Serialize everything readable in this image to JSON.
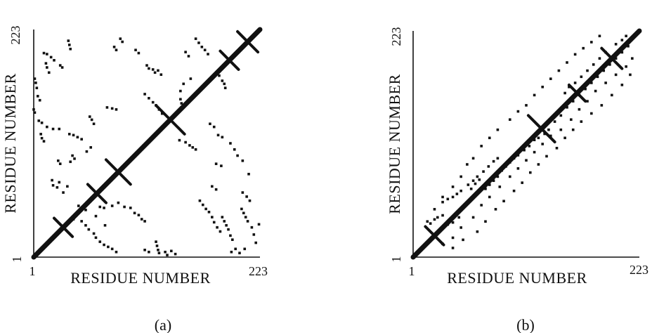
{
  "chart_data": [
    {
      "type": "scatter",
      "panel_label": "(a)",
      "xlabel": "RESIDUE NUMBER",
      "ylabel": "RESIDUE NUMBER",
      "x_ticks": [
        "1",
        "223"
      ],
      "y_ticks": [
        "1",
        "223"
      ],
      "xlim": [
        1,
        223
      ],
      "ylim": [
        1,
        223
      ],
      "grid": false,
      "diagonal": true,
      "crosses": [
        {
          "x": 30,
          "y": 30,
          "halfwidth": 9
        },
        {
          "x": 63,
          "y": 63,
          "halfwidth": 9
        },
        {
          "x": 84,
          "y": 84,
          "halfwidth": 12
        },
        {
          "x": 135,
          "y": 135,
          "halfwidth": 14
        },
        {
          "x": 193,
          "y": 193,
          "halfwidth": 9
        },
        {
          "x": 211,
          "y": 211,
          "halfwidth": 10
        }
      ],
      "points": [
        [
          35,
          212
        ],
        [
          36,
          208
        ],
        [
          37,
          204
        ],
        [
          80,
          206
        ],
        [
          82,
          203
        ],
        [
          86,
          214
        ],
        [
          88,
          211
        ],
        [
          101,
          203
        ],
        [
          104,
          200
        ],
        [
          112,
          188
        ],
        [
          114,
          185
        ],
        [
          118,
          184
        ],
        [
          120,
          181
        ],
        [
          123,
          183
        ],
        [
          126,
          179
        ],
        [
          150,
          201
        ],
        [
          153,
          197
        ],
        [
          160,
          214
        ],
        [
          163,
          210
        ],
        [
          166,
          206
        ],
        [
          169,
          203
        ],
        [
          172,
          199
        ],
        [
          183,
          178
        ],
        [
          186,
          173
        ],
        [
          188,
          170
        ],
        [
          189,
          166
        ],
        [
          155,
          175
        ],
        [
          148,
          170
        ],
        [
          145,
          163
        ],
        [
          145,
          155
        ],
        [
          146,
          151
        ],
        [
          11,
          200
        ],
        [
          14,
          199
        ],
        [
          18,
          196
        ],
        [
          21,
          193
        ],
        [
          27,
          188
        ],
        [
          29,
          186
        ],
        [
          13,
          190
        ],
        [
          14,
          186
        ],
        [
          16,
          181
        ],
        [
          2,
          175
        ],
        [
          3,
          171
        ],
        [
          4,
          166
        ],
        [
          5,
          158
        ],
        [
          7,
          154
        ],
        [
          1,
          145
        ],
        [
          2,
          142
        ],
        [
          6,
          134
        ],
        [
          9,
          132
        ],
        [
          14,
          128
        ],
        [
          20,
          126
        ],
        [
          26,
          126
        ],
        [
          8,
          121
        ],
        [
          9,
          117
        ],
        [
          11,
          114
        ],
        [
          36,
          121
        ],
        [
          40,
          120
        ],
        [
          44,
          118
        ],
        [
          48,
          116
        ],
        [
          53,
          104
        ],
        [
          57,
          108
        ],
        [
          39,
          100
        ],
        [
          41,
          97
        ],
        [
          37,
          94
        ],
        [
          25,
          95
        ],
        [
          27,
          92
        ],
        [
          19,
          76
        ],
        [
          20,
          71
        ],
        [
          26,
          74
        ],
        [
          24,
          69
        ],
        [
          30,
          64
        ],
        [
          34,
          70
        ],
        [
          66,
          50
        ],
        [
          70,
          49
        ],
        [
          78,
          51
        ],
        [
          84,
          54
        ],
        [
          90,
          50
        ],
        [
          96,
          49
        ],
        [
          100,
          44
        ],
        [
          104,
          42
        ],
        [
          107,
          38
        ],
        [
          110,
          36
        ],
        [
          45,
          51
        ],
        [
          52,
          47
        ],
        [
          62,
          41
        ],
        [
          71,
          32
        ],
        [
          40,
          38
        ],
        [
          48,
          36
        ],
        [
          52,
          32
        ],
        [
          55,
          28
        ],
        [
          60,
          24
        ],
        [
          62,
          20
        ],
        [
          66,
          16
        ],
        [
          70,
          13
        ],
        [
          74,
          11
        ],
        [
          78,
          9
        ],
        [
          82,
          6
        ],
        [
          56,
          138
        ],
        [
          58,
          135
        ],
        [
          60,
          131
        ],
        [
          73,
          147
        ],
        [
          78,
          146
        ],
        [
          82,
          145
        ],
        [
          110,
          160
        ],
        [
          114,
          156
        ],
        [
          118,
          152
        ],
        [
          121,
          149
        ],
        [
          124,
          145
        ],
        [
          127,
          141
        ],
        [
          144,
          115
        ],
        [
          150,
          113
        ],
        [
          154,
          110
        ],
        [
          157,
          108
        ],
        [
          160,
          106
        ],
        [
          174,
          131
        ],
        [
          178,
          128
        ],
        [
          182,
          120
        ],
        [
          186,
          118
        ],
        [
          194,
          112
        ],
        [
          198,
          106
        ],
        [
          201,
          100
        ],
        [
          206,
          95
        ],
        [
          212,
          82
        ],
        [
          180,
          92
        ],
        [
          185,
          90
        ],
        [
          176,
          70
        ],
        [
          180,
          67
        ],
        [
          206,
          64
        ],
        [
          210,
          60
        ],
        [
          213,
          56
        ],
        [
          186,
          40
        ],
        [
          188,
          36
        ],
        [
          190,
          32
        ],
        [
          192,
          28
        ],
        [
          194,
          22
        ],
        [
          196,
          18
        ],
        [
          164,
          56
        ],
        [
          167,
          52
        ],
        [
          170,
          48
        ],
        [
          173,
          45
        ],
        [
          176,
          40
        ],
        [
          178,
          35
        ],
        [
          181,
          30
        ],
        [
          184,
          26
        ],
        [
          121,
          16
        ],
        [
          122,
          12
        ],
        [
          123,
          8
        ],
        [
          124,
          5
        ],
        [
          130,
          6
        ],
        [
          132,
          3
        ],
        [
          136,
          7
        ],
        [
          140,
          4
        ],
        [
          110,
          8
        ],
        [
          114,
          6
        ],
        [
          195,
          6
        ],
        [
          199,
          9
        ],
        [
          203,
          5
        ],
        [
          208,
          9
        ],
        [
          222,
          33
        ],
        [
          215,
          30
        ],
        [
          217,
          23
        ],
        [
          219,
          15
        ],
        [
          205,
          48
        ],
        [
          207,
          44
        ],
        [
          209,
          40
        ],
        [
          211,
          36
        ]
      ]
    },
    {
      "type": "scatter",
      "panel_label": "(b)",
      "xlabel": "RESIDUE NUMBER",
      "ylabel": "RESIDUE NUMBER",
      "x_ticks": [
        "1",
        "223"
      ],
      "y_ticks": [
        "1",
        "223"
      ],
      "xlim": [
        1,
        223
      ],
      "ylim": [
        1,
        223
      ],
      "grid": false,
      "diagonal": true,
      "crosses": [
        {
          "x": 22,
          "y": 22,
          "halfwidth": 9
        },
        {
          "x": 127,
          "y": 127,
          "halfwidth": 13
        },
        {
          "x": 162,
          "y": 162,
          "halfwidth": 8
        },
        {
          "x": 196,
          "y": 196,
          "halfwidth": 10
        }
      ],
      "points": [
        [
          15,
          36
        ],
        [
          18,
          34
        ],
        [
          22,
          38
        ],
        [
          25,
          40
        ],
        [
          30,
          42
        ],
        [
          35,
          33
        ],
        [
          40,
          35
        ],
        [
          46,
          40
        ],
        [
          30,
          55
        ],
        [
          35,
          58
        ],
        [
          40,
          60
        ],
        [
          44,
          63
        ],
        [
          48,
          66
        ],
        [
          55,
          72
        ],
        [
          60,
          76
        ],
        [
          64,
          80
        ],
        [
          70,
          85
        ],
        [
          75,
          90
        ],
        [
          80,
          95
        ],
        [
          84,
          98
        ],
        [
          58,
          68
        ],
        [
          62,
          73
        ],
        [
          66,
          77
        ],
        [
          72,
          68
        ],
        [
          76,
          72
        ],
        [
          80,
          76
        ],
        [
          84,
          80
        ],
        [
          88,
          86
        ],
        [
          92,
          90
        ],
        [
          96,
          94
        ],
        [
          100,
          98
        ],
        [
          104,
          101
        ],
        [
          110,
          106
        ],
        [
          115,
          110
        ],
        [
          120,
          116
        ],
        [
          124,
          118
        ],
        [
          130,
          122
        ],
        [
          134,
          126
        ],
        [
          140,
          134
        ],
        [
          146,
          140
        ],
        [
          152,
          148
        ],
        [
          158,
          154
        ],
        [
          164,
          160
        ],
        [
          170,
          166
        ],
        [
          176,
          172
        ],
        [
          182,
          178
        ],
        [
          188,
          184
        ],
        [
          194,
          190
        ],
        [
          200,
          196
        ],
        [
          206,
          202
        ],
        [
          212,
          208
        ],
        [
          150,
          162
        ],
        [
          154,
          168
        ],
        [
          160,
          172
        ],
        [
          166,
          178
        ],
        [
          172,
          184
        ],
        [
          178,
          190
        ],
        [
          184,
          196
        ],
        [
          190,
          202
        ],
        [
          200,
          210
        ],
        [
          206,
          214
        ],
        [
          210,
          218
        ],
        [
          22,
          48
        ],
        [
          30,
          60
        ],
        [
          40,
          70
        ],
        [
          48,
          80
        ],
        [
          54,
          92
        ],
        [
          60,
          98
        ],
        [
          68,
          110
        ],
        [
          76,
          118
        ],
        [
          84,
          126
        ],
        [
          96,
          136
        ],
        [
          104,
          144
        ],
        [
          112,
          150
        ],
        [
          120,
          160
        ],
        [
          128,
          168
        ],
        [
          136,
          176
        ],
        [
          144,
          184
        ],
        [
          152,
          192
        ],
        [
          160,
          200
        ],
        [
          168,
          206
        ],
        [
          176,
          212
        ],
        [
          184,
          218
        ],
        [
          30,
          14
        ],
        [
          40,
          20
        ],
        [
          48,
          30
        ],
        [
          60,
          40
        ],
        [
          68,
          52
        ],
        [
          76,
          60
        ],
        [
          86,
          70
        ],
        [
          96,
          80
        ],
        [
          104,
          88
        ],
        [
          112,
          96
        ],
        [
          120,
          104
        ],
        [
          128,
          112
        ],
        [
          136,
          120
        ],
        [
          146,
          126
        ],
        [
          156,
          136
        ],
        [
          164,
          146
        ],
        [
          172,
          154
        ],
        [
          180,
          164
        ],
        [
          190,
          172
        ],
        [
          200,
          180
        ],
        [
          210,
          188
        ],
        [
          216,
          196
        ],
        [
          40,
          10
        ],
        [
          50,
          18
        ],
        [
          64,
          26
        ],
        [
          72,
          36
        ],
        [
          82,
          48
        ],
        [
          90,
          56
        ],
        [
          100,
          66
        ],
        [
          108,
          74
        ],
        [
          116,
          84
        ],
        [
          124,
          92
        ],
        [
          132,
          100
        ],
        [
          142,
          108
        ],
        [
          150,
          118
        ],
        [
          158,
          126
        ],
        [
          166,
          134
        ],
        [
          176,
          142
        ],
        [
          186,
          150
        ],
        [
          196,
          160
        ],
        [
          206,
          170
        ],
        [
          214,
          180
        ]
      ]
    }
  ],
  "colors": {
    "ink": "#111111",
    "background": "#ffffff"
  }
}
